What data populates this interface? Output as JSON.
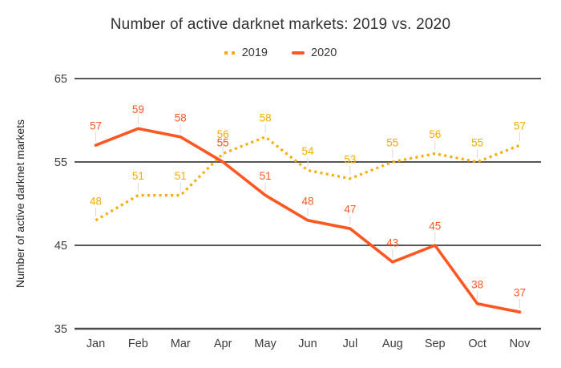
{
  "chart_data": {
    "type": "line",
    "title": "Number of active darknet markets: 2019 vs. 2020",
    "categories": [
      "Jan",
      "Feb",
      "Mar",
      "Apr",
      "May",
      "Jun",
      "Jul",
      "Aug",
      "Sep",
      "Oct",
      "Nov"
    ],
    "series": [
      {
        "name": "2019",
        "line_style": "dotted",
        "color": "#F9AB00",
        "values": [
          48,
          51,
          51,
          56,
          58,
          54,
          53,
          55,
          56,
          55,
          57
        ]
      },
      {
        "name": "2020",
        "line_style": "solid",
        "color": "#FF5722",
        "values": [
          57,
          59,
          58,
          55,
          51,
          48,
          47,
          43,
          45,
          38,
          37
        ]
      }
    ],
    "xlabel": "",
    "ylabel": "Number of active darknet markets",
    "ylim": [
      35,
      65
    ],
    "yticks": [
      35,
      45,
      55,
      65
    ],
    "grid": true,
    "legend_position": "top",
    "data_labels": true
  },
  "colors": {
    "series_2019": "#F9AB00",
    "series_2020": "#FF5722",
    "gridline": "#575757",
    "axis_line": "#4a4a4a",
    "tick_label": "#3c3c3c",
    "axis_title": "#1f1f1f",
    "chart_title": "#303030",
    "leader_line": "#d9d9d9",
    "background": "#ffffff"
  }
}
